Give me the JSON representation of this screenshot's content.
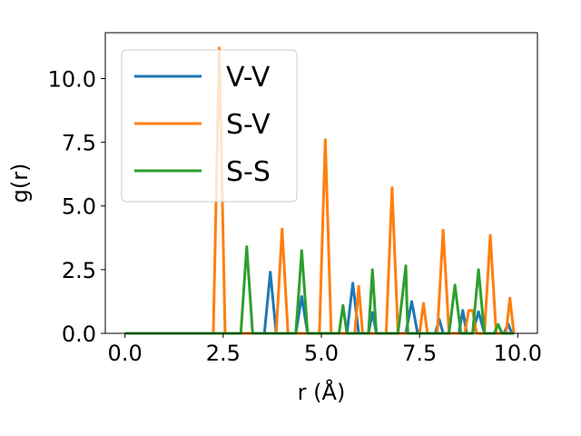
{
  "chart_data": {
    "type": "line",
    "xlabel": "r (Å)",
    "ylabel": "g(r)",
    "xlim": [
      -0.5,
      10.5
    ],
    "ylim": [
      0,
      11.8
    ],
    "xticks": [
      "0.0",
      "2.5",
      "5.0",
      "7.5",
      "10.0"
    ],
    "yticks": [
      "0.0",
      "2.5",
      "5.0",
      "7.5",
      "10.0"
    ],
    "grid": false,
    "legend_position": "top-left",
    "series": [
      {
        "name": "V-V",
        "color": "#1f77b4",
        "x": [
          0.0,
          3.55,
          3.7,
          3.85,
          4.35,
          4.5,
          4.65,
          5.65,
          5.8,
          5.95,
          6.2,
          6.3,
          6.4,
          7.15,
          7.3,
          7.45,
          7.9,
          8.0,
          8.1,
          8.5,
          8.6,
          8.7,
          8.85,
          9.0,
          9.15,
          9.65,
          9.75,
          9.85,
          9.9
        ],
        "y": [
          0.0,
          0.0,
          2.4,
          0.0,
          0.0,
          1.45,
          0.0,
          0.0,
          1.97,
          0.0,
          0.0,
          0.82,
          0.0,
          0.0,
          1.25,
          0.0,
          0.0,
          0.55,
          0.0,
          0.0,
          0.9,
          0.0,
          0.0,
          0.85,
          0.0,
          0.0,
          0.38,
          0.0,
          0.0
        ]
      },
      {
        "name": "S-V",
        "color": "#ff7f0e",
        "x": [
          0.0,
          2.25,
          2.4,
          2.55,
          3.85,
          4.0,
          4.15,
          4.95,
          5.1,
          5.25,
          5.85,
          5.95,
          6.05,
          6.65,
          6.8,
          6.95,
          7.5,
          7.6,
          7.7,
          7.95,
          8.1,
          8.25,
          8.65,
          8.75,
          8.85,
          8.95,
          9.15,
          9.3,
          9.45,
          9.7,
          9.8,
          9.9
        ],
        "y": [
          0.0,
          0.0,
          11.2,
          0.0,
          0.0,
          4.1,
          0.0,
          0.0,
          7.6,
          0.0,
          0.0,
          1.85,
          0.0,
          0.0,
          5.72,
          0.0,
          0.0,
          1.18,
          0.0,
          0.0,
          4.05,
          0.0,
          0.0,
          0.9,
          0.9,
          0.0,
          0.0,
          3.85,
          0.0,
          0.0,
          1.38,
          0.0
        ]
      },
      {
        "name": "S-S",
        "color": "#2ca02c",
        "x": [
          0.0,
          2.95,
          3.1,
          3.25,
          4.35,
          4.5,
          4.65,
          5.45,
          5.55,
          5.65,
          6.2,
          6.3,
          6.4,
          6.95,
          7.05,
          7.15,
          7.2,
          7.3,
          8.25,
          8.4,
          8.55,
          8.85,
          9.0,
          9.15,
          9.4,
          9.5,
          9.6,
          9.9
        ],
        "y": [
          0.0,
          0.0,
          3.4,
          0.0,
          0.0,
          3.25,
          0.0,
          0.0,
          1.1,
          0.0,
          0.0,
          2.5,
          0.0,
          0.0,
          1.3,
          2.65,
          0.0,
          0.0,
          0.0,
          1.9,
          0.0,
          0.0,
          2.5,
          0.0,
          0.0,
          0.35,
          0.0,
          0.0
        ]
      }
    ]
  }
}
